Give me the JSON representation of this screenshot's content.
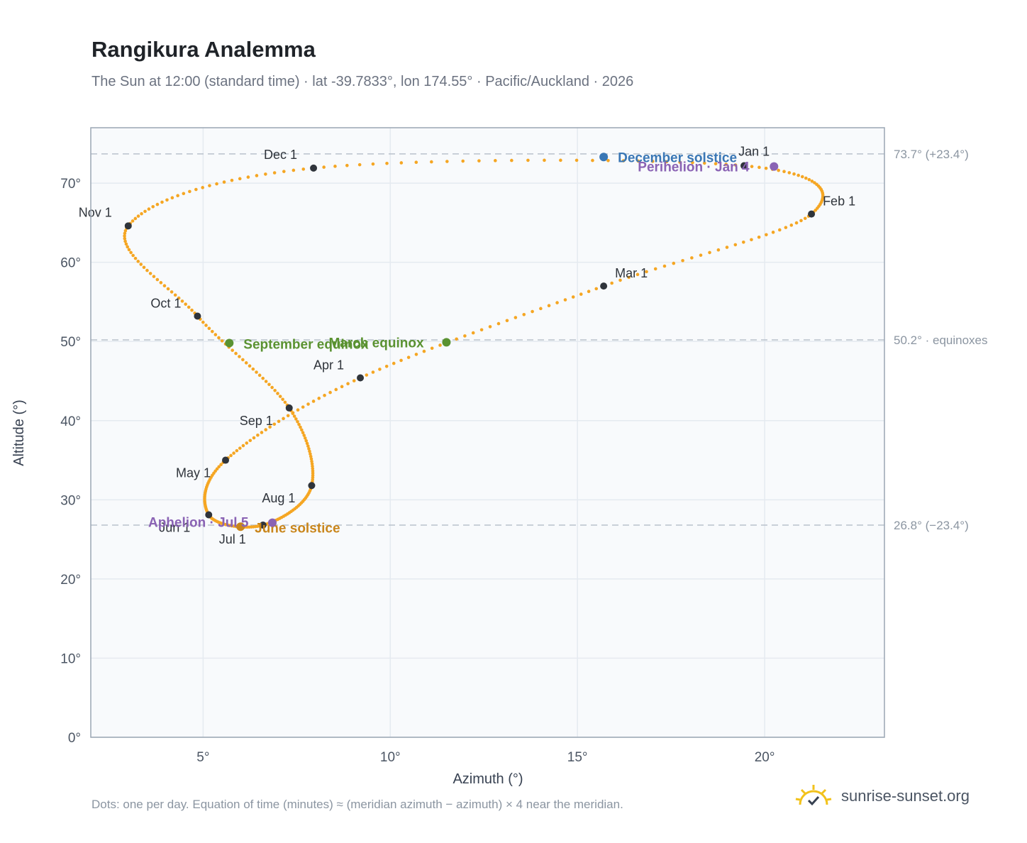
{
  "page": {
    "title": "Rangikura Analemma",
    "subtitle": "The Sun at 12:00 (standard time) · lat -39.7833°, lon 174.55° · Pacific/Auckland · 2026",
    "footnote": "Dots: one per day. Equation of time (minutes) ≈ (meridian azimuth − azimuth) × 4 near the meridian.",
    "brand": "sunrise-sunset.org",
    "brand_icon": "sun-logo-icon"
  },
  "colors": {
    "curve": "#f5a623",
    "month_dot": "#2f343b",
    "equinox": "#5a9231",
    "december_solstice": "#3a77b5",
    "june_solstice": "#c9861c",
    "apsis": "#8a63b4",
    "reference_line": "#b9c2cc",
    "plot_bg": "#f8fafc",
    "grid": "#e5eaf0",
    "frame": "#9aa6b4"
  },
  "chart_data": {
    "type": "scatter",
    "xlabel": "Azimuth (°)",
    "ylabel": "Altitude (°)",
    "xlim": [
      2,
      23.2
    ],
    "ylim": [
      0,
      77
    ],
    "x_ticks": [
      5,
      10,
      15,
      20
    ],
    "y_ticks": [
      0,
      10,
      20,
      30,
      40,
      50,
      60,
      70
    ],
    "x_tick_labels": [
      "5°",
      "10°",
      "15°",
      "20°"
    ],
    "y_tick_labels": [
      "0°",
      "10°",
      "20°",
      "30°",
      "40°",
      "50°",
      "60°",
      "70°"
    ],
    "grid": true,
    "month_points": [
      {
        "label": "Jan 1",
        "x": 19.45,
        "y": 72.2
      },
      {
        "label": "Feb 1",
        "x": 21.25,
        "y": 66.1
      },
      {
        "label": "Mar 1",
        "x": 15.7,
        "y": 57.0
      },
      {
        "label": "Apr 1",
        "x": 9.2,
        "y": 45.4
      },
      {
        "label": "May 1",
        "x": 5.6,
        "y": 35.0
      },
      {
        "label": "Jun 1",
        "x": 5.15,
        "y": 28.1
      },
      {
        "label": "Jul 1",
        "x": 6.6,
        "y": 26.8
      },
      {
        "label": "Aug 1",
        "x": 7.9,
        "y": 31.8
      },
      {
        "label": "Sep 1",
        "x": 7.3,
        "y": 41.6
      },
      {
        "label": "Oct 1",
        "x": 4.85,
        "y": 53.2
      },
      {
        "label": "Nov 1",
        "x": 3.0,
        "y": 64.6
      },
      {
        "label": "Dec 1",
        "x": 7.95,
        "y": 71.9
      }
    ],
    "events": [
      {
        "label": "December solstice",
        "x": 15.7,
        "y": 73.3,
        "kind": "december_solstice"
      },
      {
        "label": "Perihelion · Jan 4",
        "x": 20.25,
        "y": 72.1,
        "kind": "apsis"
      },
      {
        "label": "March equinox",
        "x": 11.5,
        "y": 49.9,
        "kind": "equinox"
      },
      {
        "label": "September equinox",
        "x": 5.7,
        "y": 49.8,
        "kind": "equinox"
      },
      {
        "label": "June solstice",
        "x": 6.0,
        "y": 26.6,
        "kind": "june_solstice"
      },
      {
        "label": "Aphelion · Jul 5",
        "x": 6.85,
        "y": 27.1,
        "kind": "apsis"
      }
    ],
    "reference_lines": [
      {
        "y": 73.7,
        "label": "73.7° (+23.4°)"
      },
      {
        "y": 50.2,
        "label": "50.2° · equinoxes"
      },
      {
        "y": 26.8,
        "label": "26.8° (−23.4°)"
      }
    ]
  }
}
